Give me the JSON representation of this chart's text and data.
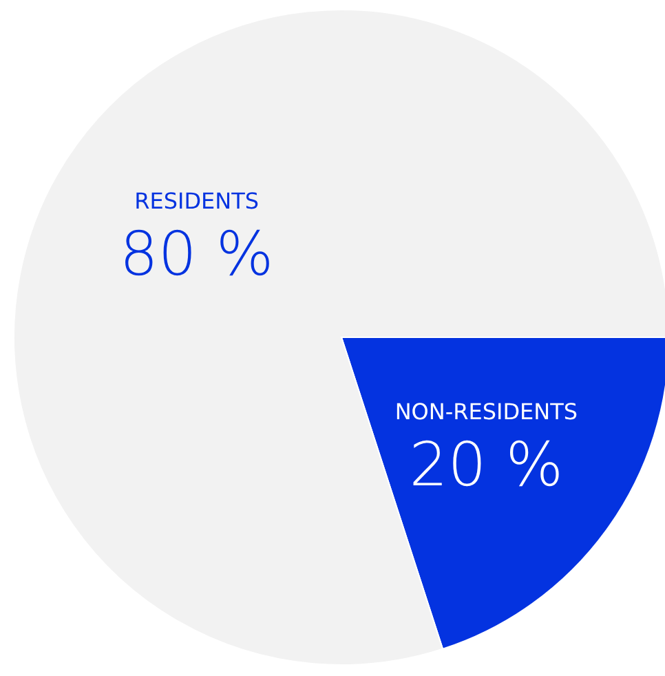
{
  "chart_data": {
    "type": "pie",
    "categories": [
      "NON-RESIDENTS",
      "RESIDENTS"
    ],
    "values": [
      20,
      80
    ],
    "colors": [
      "#0433e0",
      "#f2f2f2"
    ],
    "value_labels": [
      "20 %",
      "80 %"
    ],
    "legend": false
  }
}
